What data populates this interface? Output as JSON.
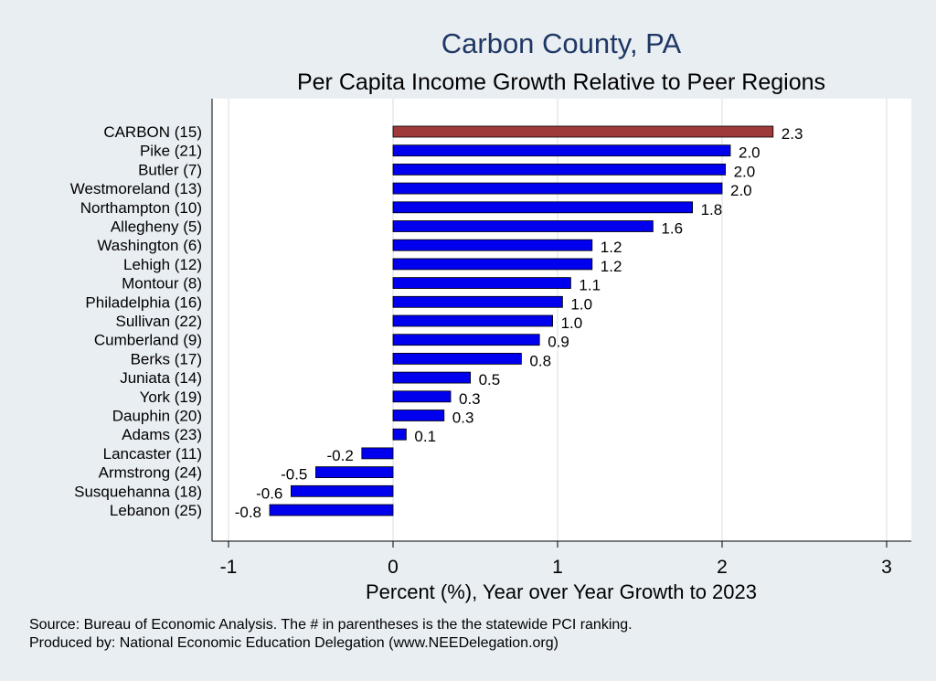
{
  "colors": {
    "background": "#e9eef3",
    "plot_bg": "#ffffff",
    "title": "#1f3763",
    "highlight_bar": "#9e3a3a",
    "bar": "#0000ee",
    "grid": "#e6eaee"
  },
  "chart_data": {
    "type": "bar",
    "orientation": "horizontal",
    "title": "Carbon County, PA",
    "subtitle": "Per Capita Income Growth Relative to Peer Regions",
    "xlabel": "Percent (%), Year over Year Growth to 2023",
    "ylabel": "",
    "xlim": [
      -1.1,
      3.15
    ],
    "xticks": [
      -1,
      0,
      1,
      2,
      3
    ],
    "grid": true,
    "highlight_category": "CARBON (15)",
    "categories": [
      "CARBON (15)",
      "Pike (21)",
      "Butler  (7)",
      "Westmoreland (13)",
      "Northampton (10)",
      "Allegheny  (5)",
      "Washington  (6)",
      "Lehigh (12)",
      "Montour  (8)",
      "Philadelphia (16)",
      "Sullivan (22)",
      "Cumberland  (9)",
      "Berks (17)",
      "Juniata (14)",
      "York (19)",
      "Dauphin (20)",
      "Adams (23)",
      "Lancaster (11)",
      "Armstrong (24)",
      "Susquehanna (18)",
      "Lebanon (25)"
    ],
    "values": [
      2.31,
      2.05,
      2.02,
      2.0,
      1.82,
      1.58,
      1.21,
      1.21,
      1.08,
      1.03,
      0.97,
      0.89,
      0.78,
      0.47,
      0.35,
      0.31,
      0.08,
      -0.19,
      -0.47,
      -0.62,
      -0.75
    ],
    "value_labels": [
      "2.3",
      "2.0",
      "2.0",
      "2.0",
      "1.8",
      "1.6",
      "1.2",
      "1.2",
      "1.1",
      "1.0",
      "1.0",
      "0.9",
      "0.8",
      "0.5",
      "0.3",
      "0.3",
      "0.1",
      "-0.2",
      "-0.5",
      "-0.6",
      "-0.8"
    ],
    "source_lines": [
      "Source: Bureau of Economic Analysis. The # in parentheses is the the statewide PCI ranking.",
      "Produced by: National Economic Education Delegation (www.NEEDelegation.org)"
    ]
  }
}
